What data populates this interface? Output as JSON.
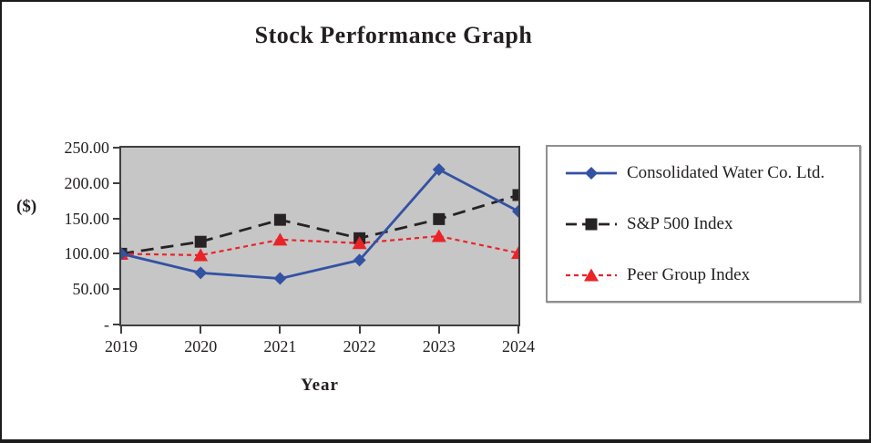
{
  "chart_data": {
    "type": "line",
    "title": "Stock Performance Graph",
    "xlabel": "Year",
    "ylabel": "($)",
    "categories": [
      "2019",
      "2020",
      "2021",
      "2022",
      "2023",
      "2024"
    ],
    "y_tick_labels": [
      "250.00",
      "200.00",
      "150.00",
      "100.00",
      "50.00",
      "-"
    ],
    "ylim": [
      0,
      250
    ],
    "grid": false,
    "legend_position": "right",
    "plot_background": "#c6c6c6",
    "axis_color": "#3f3f3f",
    "series": [
      {
        "name": "Consolidated Water Co. Ltd.",
        "color": "#3352a3",
        "marker": "diamond",
        "line_style": "solid",
        "values": [
          100,
          73,
          65,
          91,
          219,
          160
        ]
      },
      {
        "name": "S&P 500 Index",
        "color": "#272325",
        "marker": "square",
        "line_style": "long-dash",
        "values": [
          100,
          117,
          148,
          122,
          149,
          183
        ]
      },
      {
        "name": "Peer Group Index",
        "color": "#ea2328",
        "marker": "triangle",
        "line_style": "short-dash",
        "values": [
          100,
          98,
          120,
          115,
          125,
          101
        ]
      }
    ]
  }
}
